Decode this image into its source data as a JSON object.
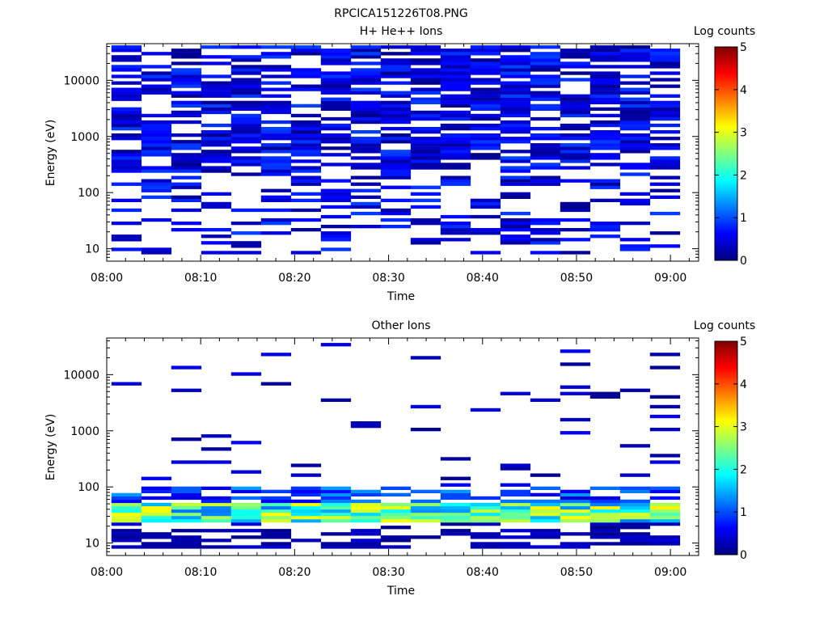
{
  "figure_title": "RPCICA151226T08.PNG",
  "colors": {
    "colormap_stops": [
      "#00007f",
      "#0000ff",
      "#007fff",
      "#00ffff",
      "#7fff7f",
      "#ffff00",
      "#ff7f00",
      "#ff0000",
      "#7f0000"
    ]
  },
  "chart_data": [
    {
      "type": "heatmap",
      "title": "H+ He++ Ions",
      "xlabel": "Time",
      "ylabel": "Energy (eV)",
      "x_ticks": [
        "08:00",
        "08:10",
        "08:20",
        "08:30",
        "08:40",
        "08:50",
        "09:00"
      ],
      "xlim": [
        "08:00",
        "09:03"
      ],
      "y_scale": "log",
      "y_ticks": [
        "10",
        "100",
        "1000",
        "10000"
      ],
      "ylim": [
        6,
        45000
      ],
      "colorbar": {
        "label": "Log counts",
        "range": [
          0,
          5
        ],
        "ticks": [
          "0",
          "1",
          "2",
          "3",
          "4",
          "5"
        ]
      },
      "grid": false
    },
    {
      "type": "heatmap",
      "title": "Other Ions",
      "xlabel": "Time",
      "ylabel": "Energy (eV)",
      "x_ticks": [
        "08:00",
        "08:10",
        "08:20",
        "08:30",
        "08:40",
        "08:50",
        "09:00"
      ],
      "xlim": [
        "08:00",
        "09:03"
      ],
      "y_scale": "log",
      "y_ticks": [
        "10",
        "100",
        "1000",
        "10000"
      ],
      "ylim": [
        6,
        45000
      ],
      "colorbar": {
        "label": "Log counts",
        "range": [
          0,
          5
        ],
        "ticks": [
          "0",
          "1",
          "2",
          "3",
          "4",
          "5"
        ]
      },
      "grid": false
    }
  ]
}
